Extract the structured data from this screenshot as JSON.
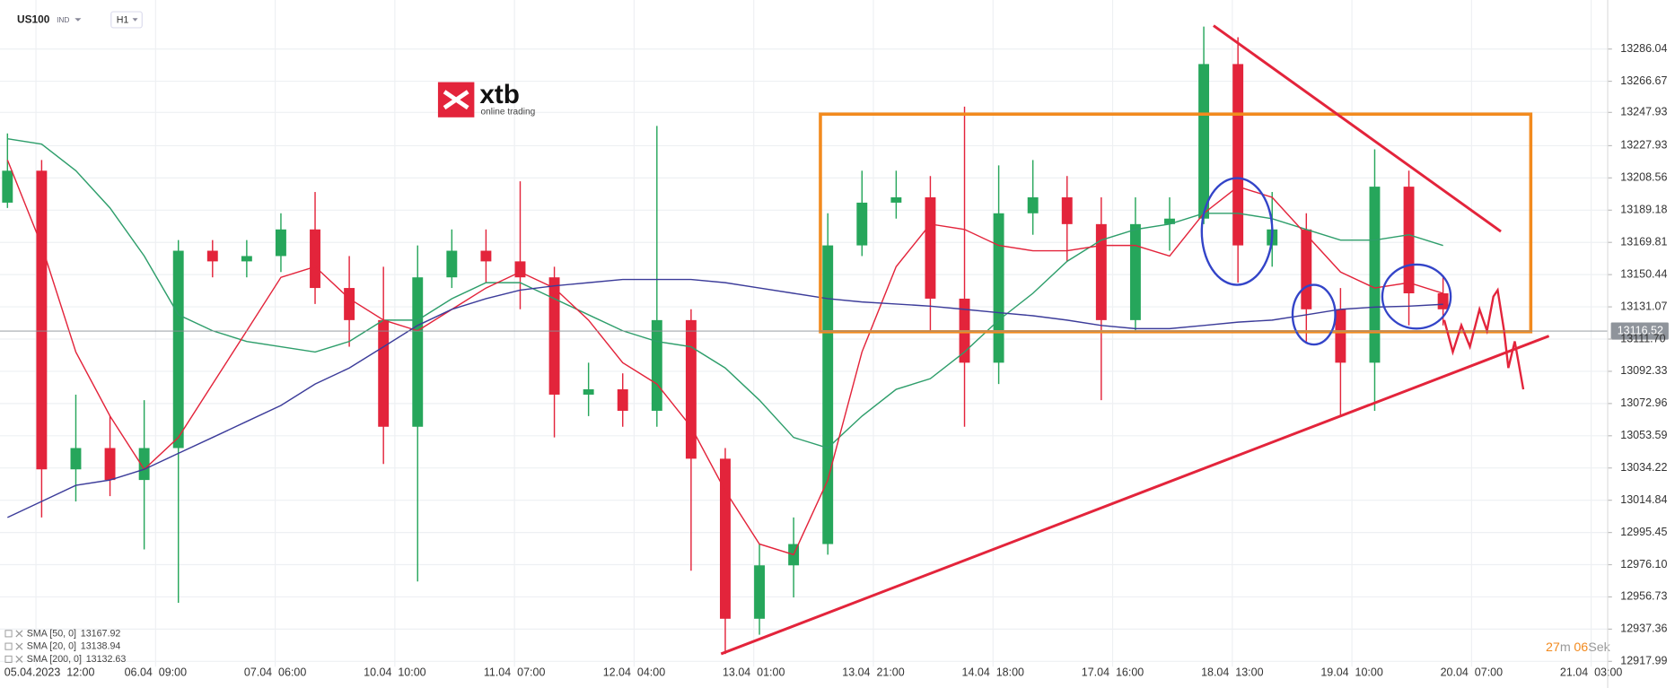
{
  "chart_data": {
    "type": "candlestick",
    "symbol": "US100",
    "market": "IND",
    "interval": "H1",
    "up_color": "#26a65b",
    "down_color": "#e3243b",
    "x": [
      0,
      6,
      12,
      18,
      24,
      30,
      36,
      42,
      48,
      54,
      60,
      66,
      72,
      78,
      84,
      90,
      96,
      102,
      108,
      114,
      120,
      126,
      132,
      138,
      144,
      150,
      156,
      162,
      168,
      174,
      180,
      186,
      192,
      198,
      204,
      210,
      216,
      222,
      228,
      234,
      240,
      246,
      252
    ],
    "open": [
      13193.7,
      13212.9,
      13033.4,
      13046.2,
      13027.0,
      13046.2,
      13164.8,
      13158.4,
      13161.6,
      13177.6,
      13142.4,
      13123.1,
      13059.0,
      13148.8,
      13164.8,
      13158.4,
      13148.8,
      13078.3,
      13081.5,
      13068.6,
      13123.1,
      13039.8,
      12943.6,
      12975.7,
      12988.5,
      13168.0,
      13193.7,
      13196.9,
      13136.0,
      13097.5,
      13187.3,
      13196.9,
      13180.8,
      13123.1,
      13180.8,
      13184.1,
      13277.0,
      13168.0,
      13177.6,
      13129.6,
      13097.5,
      13203.3,
      13139.2
    ],
    "high": [
      13235.3,
      13219.3,
      13078.3,
      13065.4,
      13075.0,
      13171.2,
      13171.2,
      13171.2,
      13187.3,
      13200.1,
      13161.6,
      13155.2,
      13168.0,
      13177.6,
      13177.6,
      13206.5,
      13155.2,
      13097.5,
      13091.1,
      13239.8,
      13129.6,
      13046.2,
      12988.5,
      13004.5,
      13187.3,
      13212.9,
      13212.9,
      13209.7,
      13251.4,
      13216.1,
      13219.3,
      13209.7,
      13196.9,
      13196.9,
      13196.9,
      13299.5,
      13293.1,
      13200.1,
      13187.3,
      13142.4,
      13225.7,
      13212.9,
      13148.8
    ],
    "low": [
      13190.5,
      13004.5,
      13014.1,
      13017.3,
      12985.3,
      12953.2,
      13148.8,
      13148.8,
      13152.0,
      13132.8,
      13107.1,
      13036.6,
      12966.0,
      13142.4,
      13145.6,
      13129.6,
      13052.6,
      13065.4,
      13059.0,
      13059.0,
      12972.5,
      12922.4,
      12934.0,
      12956.4,
      12982.1,
      13161.6,
      13184.1,
      13116.7,
      13059.0,
      13084.7,
      13174.4,
      13158.4,
      13075.0,
      13116.7,
      13164.8,
      13180.8,
      13145.6,
      13155.2,
      13110.3,
      13065.4,
      13068.6,
      13119.9,
      13119.9
    ],
    "close": [
      13212.9,
      13033.4,
      13046.2,
      13027.0,
      13046.2,
      13164.8,
      13158.4,
      13161.6,
      13177.6,
      13142.4,
      13123.1,
      13059.0,
      13148.8,
      13164.8,
      13158.4,
      13148.8,
      13078.3,
      13081.5,
      13068.6,
      13123.1,
      13039.8,
      12943.6,
      12975.7,
      12988.5,
      13168.0,
      13193.7,
      13196.9,
      13136.0,
      13097.5,
      13187.3,
      13196.9,
      13180.8,
      13123.1,
      13180.8,
      13184.1,
      13277.0,
      13168.0,
      13177.6,
      13129.6,
      13097.5,
      13203.3,
      13139.2,
      13129.6
    ],
    "series": [
      {
        "name": "SMA [50, 0]",
        "last": 13167.92,
        "color": "#2e9e6b",
        "values": [
          13232.1,
          13228.9,
          13212.9,
          13190.5,
          13161.6,
          13126.3,
          13116.7,
          13110.3,
          13107.1,
          13103.9,
          13110.3,
          13123.1,
          13123.1,
          13136.0,
          13145.6,
          13145.6,
          13136.0,
          13126.3,
          13116.7,
          13110.3,
          13107.1,
          13094.3,
          13075.0,
          13052.6,
          13046.2,
          13065.4,
          13081.5,
          13087.9,
          13103.9,
          13123.1,
          13139.2,
          13158.4,
          13171.2,
          13177.6,
          13180.8,
          13187.3,
          13187.3,
          13184.1,
          13177.6,
          13171.2,
          13171.2,
          13174.4,
          13167.9
        ]
      },
      {
        "name": "SMA [20, 0]",
        "last": 13138.94,
        "color": "#e3243b",
        "values": [
          13219.3,
          13168.0,
          13103.9,
          13065.4,
          13033.4,
          13052.6,
          13084.7,
          13116.7,
          13148.8,
          13155.2,
          13136.0,
          13123.1,
          13116.7,
          13129.6,
          13142.4,
          13152.0,
          13142.4,
          13123.1,
          13097.5,
          13084.7,
          13059.0,
          13020.5,
          12988.5,
          12982.1,
          13027.0,
          13103.9,
          13155.2,
          13180.8,
          13177.6,
          13168.0,
          13164.8,
          13164.8,
          13168.0,
          13168.0,
          13161.6,
          13187.3,
          13203.3,
          13196.9,
          13174.4,
          13152.0,
          13142.4,
          13145.6,
          13139.2
        ]
      },
      {
        "name": "SMA [200, 0]",
        "last": 13132.63,
        "color": "#3c3c9a",
        "values": [
          13004.5,
          13014.1,
          13023.8,
          13027.0,
          13033.4,
          13043.0,
          13052.6,
          13062.2,
          13071.8,
          13084.7,
          13094.3,
          13107.1,
          13119.9,
          13129.6,
          13136.0,
          13141.1,
          13143.7,
          13145.6,
          13147.5,
          13147.5,
          13147.5,
          13145.6,
          13142.4,
          13139.2,
          13136.0,
          13134.0,
          13132.8,
          13131.5,
          13129.6,
          13127.6,
          13125.7,
          13123.1,
          13119.9,
          13118.0,
          13118.0,
          13119.9,
          13121.9,
          13123.1,
          13126.3,
          13129.6,
          13130.9,
          13131.5,
          13132.6
        ]
      }
    ],
    "current_price": 13116.52,
    "xlim": [
      -1.31,
      280.9
    ],
    "xticks": [
      {
        "value": 5,
        "label": "05.04.2023  12:00"
      },
      {
        "value": 26,
        "label": "06.04  09:00"
      },
      {
        "value": 47,
        "label": "07.04  06:00"
      },
      {
        "value": 68,
        "label": "10.04  10:00"
      },
      {
        "value": 89,
        "label": "11.04  07:00"
      },
      {
        "value": 110,
        "label": "12.04  04:00"
      },
      {
        "value": 131,
        "label": "13.04  01:00"
      },
      {
        "value": 152,
        "label": "13.04  21:00"
      },
      {
        "value": 173,
        "label": "14.04  18:00"
      },
      {
        "value": 194,
        "label": "17.04  16:00"
      },
      {
        "value": 215,
        "label": "18.04  13:00"
      },
      {
        "value": 236,
        "label": "19.04  10:00"
      },
      {
        "value": 257,
        "label": "20.04  07:00"
      },
      {
        "value": 278,
        "label": "21.04  03:00"
      }
    ],
    "ylim": [
      12914.8,
      13315.5
    ],
    "yticks": [
      13286.04,
      13266.67,
      13247.93,
      13227.93,
      13208.56,
      13189.18,
      13169.81,
      13150.44,
      13131.07,
      {
        "value": 13111.7,
        "label": "13111.70"
      },
      13092.33,
      13072.96,
      13053.59,
      13034.22,
      13014.84,
      12995.45,
      {
        "value": 12976.1,
        "label": "12976.10"
      },
      12956.73,
      12937.36,
      12917.99
    ],
    "grid": true,
    "countdown": {
      "minutes": "27",
      "minutes_unit": "m",
      "seconds": "06",
      "seconds_unit": "Sek"
    },
    "logo": {
      "name": "xtb",
      "tagline": "online trading"
    }
  }
}
